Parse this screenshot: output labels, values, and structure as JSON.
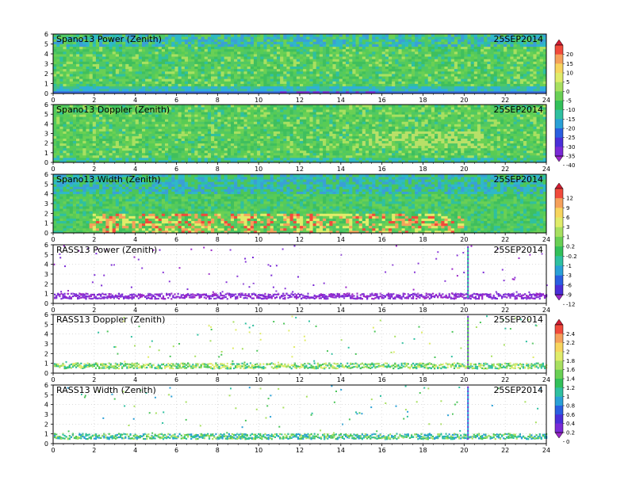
{
  "chart_data": [
    {
      "type": "heatmap",
      "title": "Spano13 Power (Zenith)",
      "date": "25SEP2014",
      "x_range": [
        0,
        24
      ],
      "y_range": [
        0,
        6
      ],
      "x_ticks": [
        "0",
        "2",
        "4",
        "6",
        "8",
        "10",
        "12",
        "14",
        "16",
        "18",
        "20",
        "22",
        "24"
      ],
      "y_ticks": [
        "0",
        "1",
        "2",
        "3",
        "4",
        "5",
        "6"
      ],
      "grid": true,
      "colorbar": "A"
    },
    {
      "type": "heatmap",
      "title": "Spano13 Doppler (Zenith)",
      "date": "25SEP2014",
      "x_range": [
        0,
        24
      ],
      "y_range": [
        0,
        6
      ],
      "x_ticks": [
        "0",
        "2",
        "4",
        "6",
        "8",
        "10",
        "12",
        "14",
        "16",
        "18",
        "20",
        "22",
        "24"
      ],
      "y_ticks": [
        "0",
        "1",
        "2",
        "3",
        "4",
        "5",
        "6"
      ],
      "grid": true,
      "colorbar": "A"
    },
    {
      "type": "heatmap",
      "title": "Spano13 Width (Zenith)",
      "date": "25SEP2014",
      "x_range": [
        0,
        24
      ],
      "y_range": [
        0,
        6
      ],
      "x_ticks": [
        "0",
        "2",
        "4",
        "6",
        "8",
        "10",
        "12",
        "14",
        "16",
        "18",
        "20",
        "22",
        "24"
      ],
      "y_ticks": [
        "0",
        "1",
        "2",
        "3",
        "4",
        "5",
        "6"
      ],
      "grid": true,
      "colorbar": "B"
    },
    {
      "type": "heatmap",
      "title": "RASS13 Power (Zenith)",
      "date": "25SEP2014",
      "x_range": [
        0,
        24
      ],
      "y_range": [
        0,
        6
      ],
      "x_ticks": [
        "0",
        "2",
        "4",
        "6",
        "8",
        "10",
        "12",
        "14",
        "16",
        "18",
        "20",
        "22",
        "24"
      ],
      "y_ticks": [
        "0",
        "1",
        "2",
        "3",
        "4",
        "5",
        "6"
      ],
      "grid": true,
      "colorbar": "B"
    },
    {
      "type": "heatmap",
      "title": "RASS13 Doppler (Zenith)",
      "date": "25SEP2014",
      "x_range": [
        0,
        24
      ],
      "y_range": [
        0,
        6
      ],
      "x_ticks": [
        "0",
        "2",
        "4",
        "6",
        "8",
        "10",
        "12",
        "14",
        "16",
        "18",
        "20",
        "22",
        "24"
      ],
      "y_ticks": [
        "0",
        "1",
        "2",
        "3",
        "4",
        "5",
        "6"
      ],
      "grid": true,
      "colorbar": "C"
    },
    {
      "type": "heatmap",
      "title": "RASS13 Width (Zenith)",
      "date": "25SEP2014",
      "x_range": [
        0,
        24
      ],
      "y_range": [
        0,
        6
      ],
      "x_ticks": [
        "0",
        "2",
        "4",
        "6",
        "8",
        "10",
        "12",
        "14",
        "16",
        "18",
        "20",
        "22",
        "24"
      ],
      "y_ticks": [
        "0",
        "1",
        "2",
        "3",
        "4",
        "5",
        "6"
      ],
      "grid": true,
      "colorbar": "C"
    }
  ],
  "colorbars": {
    "A": {
      "labels": [
        "20",
        "15",
        "10",
        "5",
        "0",
        "-5",
        "-10",
        "-15",
        "-20",
        "-25",
        "-30",
        "-35",
        "-40"
      ],
      "colors": [
        "#d21d33",
        "#f04a3c",
        "#f5a05a",
        "#f7d55e",
        "#e0ec6a",
        "#a8e060",
        "#6ad055",
        "#33c05a",
        "#2fc0a0",
        "#2aa0d6",
        "#2a5fe0",
        "#4a2fd8",
        "#7a2ad6",
        "#9b27c8"
      ]
    },
    "B": {
      "labels": [
        "12",
        "9",
        "6",
        "3",
        "1",
        "0.2",
        "-0.2",
        "-1",
        "-3",
        "-6",
        "-9",
        "-12"
      ],
      "colors": [
        "#d21d33",
        "#f04a3c",
        "#f5a05a",
        "#f7d55e",
        "#e0ec6a",
        "#a8e060",
        "#6ad055",
        "#33c05a",
        "#2fc0a0",
        "#2aa0d6",
        "#2a5fe0",
        "#4a2fd8",
        "#9b27c8"
      ]
    },
    "C": {
      "labels": [
        "2.4",
        "2.2",
        "2",
        "1.8",
        "1.6",
        "1.4",
        "1.2",
        "1",
        "0.8",
        "0.6",
        "0.4",
        "0.2",
        "0"
      ],
      "colors": [
        "#d21d33",
        "#f04a3c",
        "#f5a05a",
        "#f7d55e",
        "#e0ec6a",
        "#a8e060",
        "#6ad055",
        "#33c05a",
        "#2fc0a0",
        "#2aa0d6",
        "#2a5fe0",
        "#4a2fd8",
        "#7a2ad6",
        "#9b27c8"
      ]
    }
  }
}
